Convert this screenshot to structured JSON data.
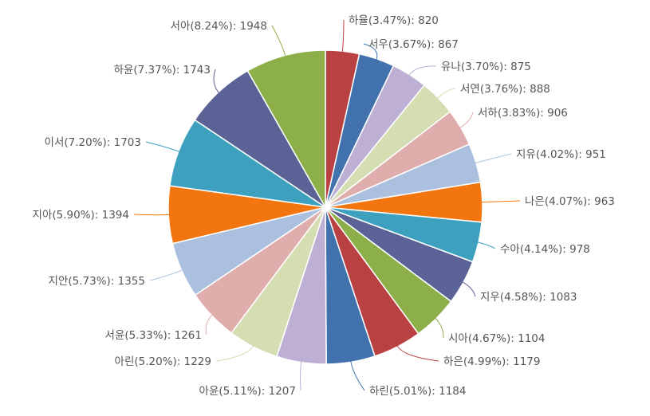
{
  "chart_data": {
    "type": "pie",
    "title": "",
    "start_angle_deg": 0,
    "direction": "clockwise",
    "slices": [
      {
        "label": "하율",
        "percent": "3.47%",
        "value": 820,
        "color": "#BA4141"
      },
      {
        "label": "서우",
        "percent": "3.67%",
        "value": 867,
        "color": "#4272AE"
      },
      {
        "label": "유나",
        "percent": "3.70%",
        "value": 875,
        "color": "#BEB0D4"
      },
      {
        "label": "서연",
        "percent": "3.76%",
        "value": 888,
        "color": "#D4DEB2"
      },
      {
        "label": "서하",
        "percent": "3.83%",
        "value": 906,
        "color": "#DFADAB"
      },
      {
        "label": "지유",
        "percent": "4.02%",
        "value": 951,
        "color": "#AAC0DE"
      },
      {
        "label": "나은",
        "percent": "4.07%",
        "value": 963,
        "color": "#F3750F"
      },
      {
        "label": "수아",
        "percent": "4.14%",
        "value": 978,
        "color": "#3CA0BE"
      },
      {
        "label": "지우",
        "percent": "4.58%",
        "value": 1083,
        "color": "#5B6296"
      },
      {
        "label": "시아",
        "percent": "4.67%",
        "value": 1104,
        "color": "#8DAF4A"
      },
      {
        "label": "하은",
        "percent": "4.99%",
        "value": 1179,
        "color": "#BA4141"
      },
      {
        "label": "하린",
        "percent": "5.01%",
        "value": 1184,
        "color": "#4272AE"
      },
      {
        "label": "아윤",
        "percent": "5.11%",
        "value": 1207,
        "color": "#BEB0D4"
      },
      {
        "label": "아린",
        "percent": "5.20%",
        "value": 1229,
        "color": "#D4DEB2"
      },
      {
        "label": "서윤",
        "percent": "5.33%",
        "value": 1261,
        "color": "#DFADAB"
      },
      {
        "label": "지안",
        "percent": "5.73%",
        "value": 1355,
        "color": "#AAC0DE"
      },
      {
        "label": "지아",
        "percent": "5.90%",
        "value": 1394,
        "color": "#F3750F"
      },
      {
        "label": "이서",
        "percent": "7.20%",
        "value": 1703,
        "color": "#3CA0BE"
      },
      {
        "label": "하윤",
        "percent": "7.37%",
        "value": 1743,
        "color": "#5B6296"
      },
      {
        "label": "서아",
        "percent": "8.24%",
        "value": 1948,
        "color": "#8DAF4A"
      }
    ],
    "label_format": "{label}({percent}): {value}",
    "legend": "none"
  }
}
